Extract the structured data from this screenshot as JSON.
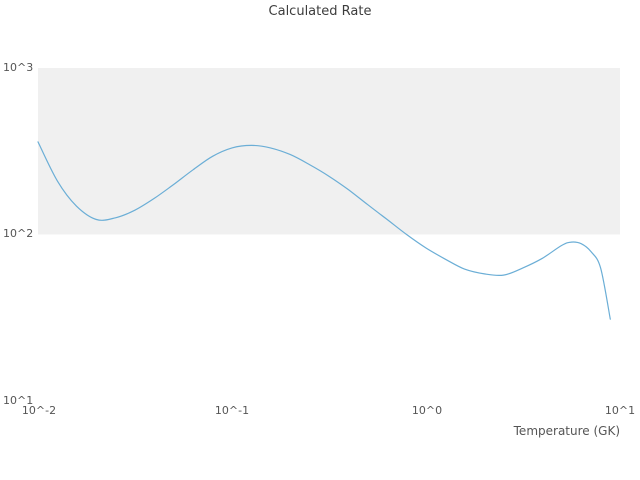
{
  "title": "Calculated Rate",
  "colors": {
    "line": "#6baed6",
    "band": "#f0f0f0",
    "text": "#555555"
  },
  "axes": {
    "xlabel": "Temperature (GK)",
    "x_ticks": [
      "10^-2",
      "10^-1",
      "10^0",
      "10^1"
    ],
    "y_ticks": [
      "10^3",
      "10^2",
      "10^1"
    ]
  },
  "chart_data": {
    "type": "line",
    "title": "Calculated Rate",
    "xlabel": "Temperature (GK)",
    "ylabel": "",
    "xscale": "log",
    "yscale": "log",
    "xlim": [
      0.01,
      10
    ],
    "ylim": [
      10,
      1000
    ],
    "grid": false,
    "legend": false,
    "shaded_band_y": [
      100,
      1000
    ],
    "x": [
      0.01,
      0.0126,
      0.0158,
      0.02,
      0.0251,
      0.0316,
      0.0398,
      0.0501,
      0.0631,
      0.0794,
      0.1,
      0.126,
      0.158,
      0.2,
      0.251,
      0.316,
      0.398,
      0.501,
      0.631,
      0.794,
      1.0,
      1.26,
      1.58,
      2.0,
      2.51,
      3.16,
      3.98,
      5.01,
      5.62,
      6.31,
      7.08,
      7.94,
      8.91
    ],
    "y": [
      360,
      209,
      148,
      123,
      126,
      140,
      165,
      200,
      245,
      295,
      331,
      343,
      331,
      302,
      263,
      224,
      186,
      151,
      123,
      100,
      83,
      71,
      62,
      58,
      57,
      63,
      72,
      86,
      90,
      88,
      79,
      63,
      31
    ]
  }
}
